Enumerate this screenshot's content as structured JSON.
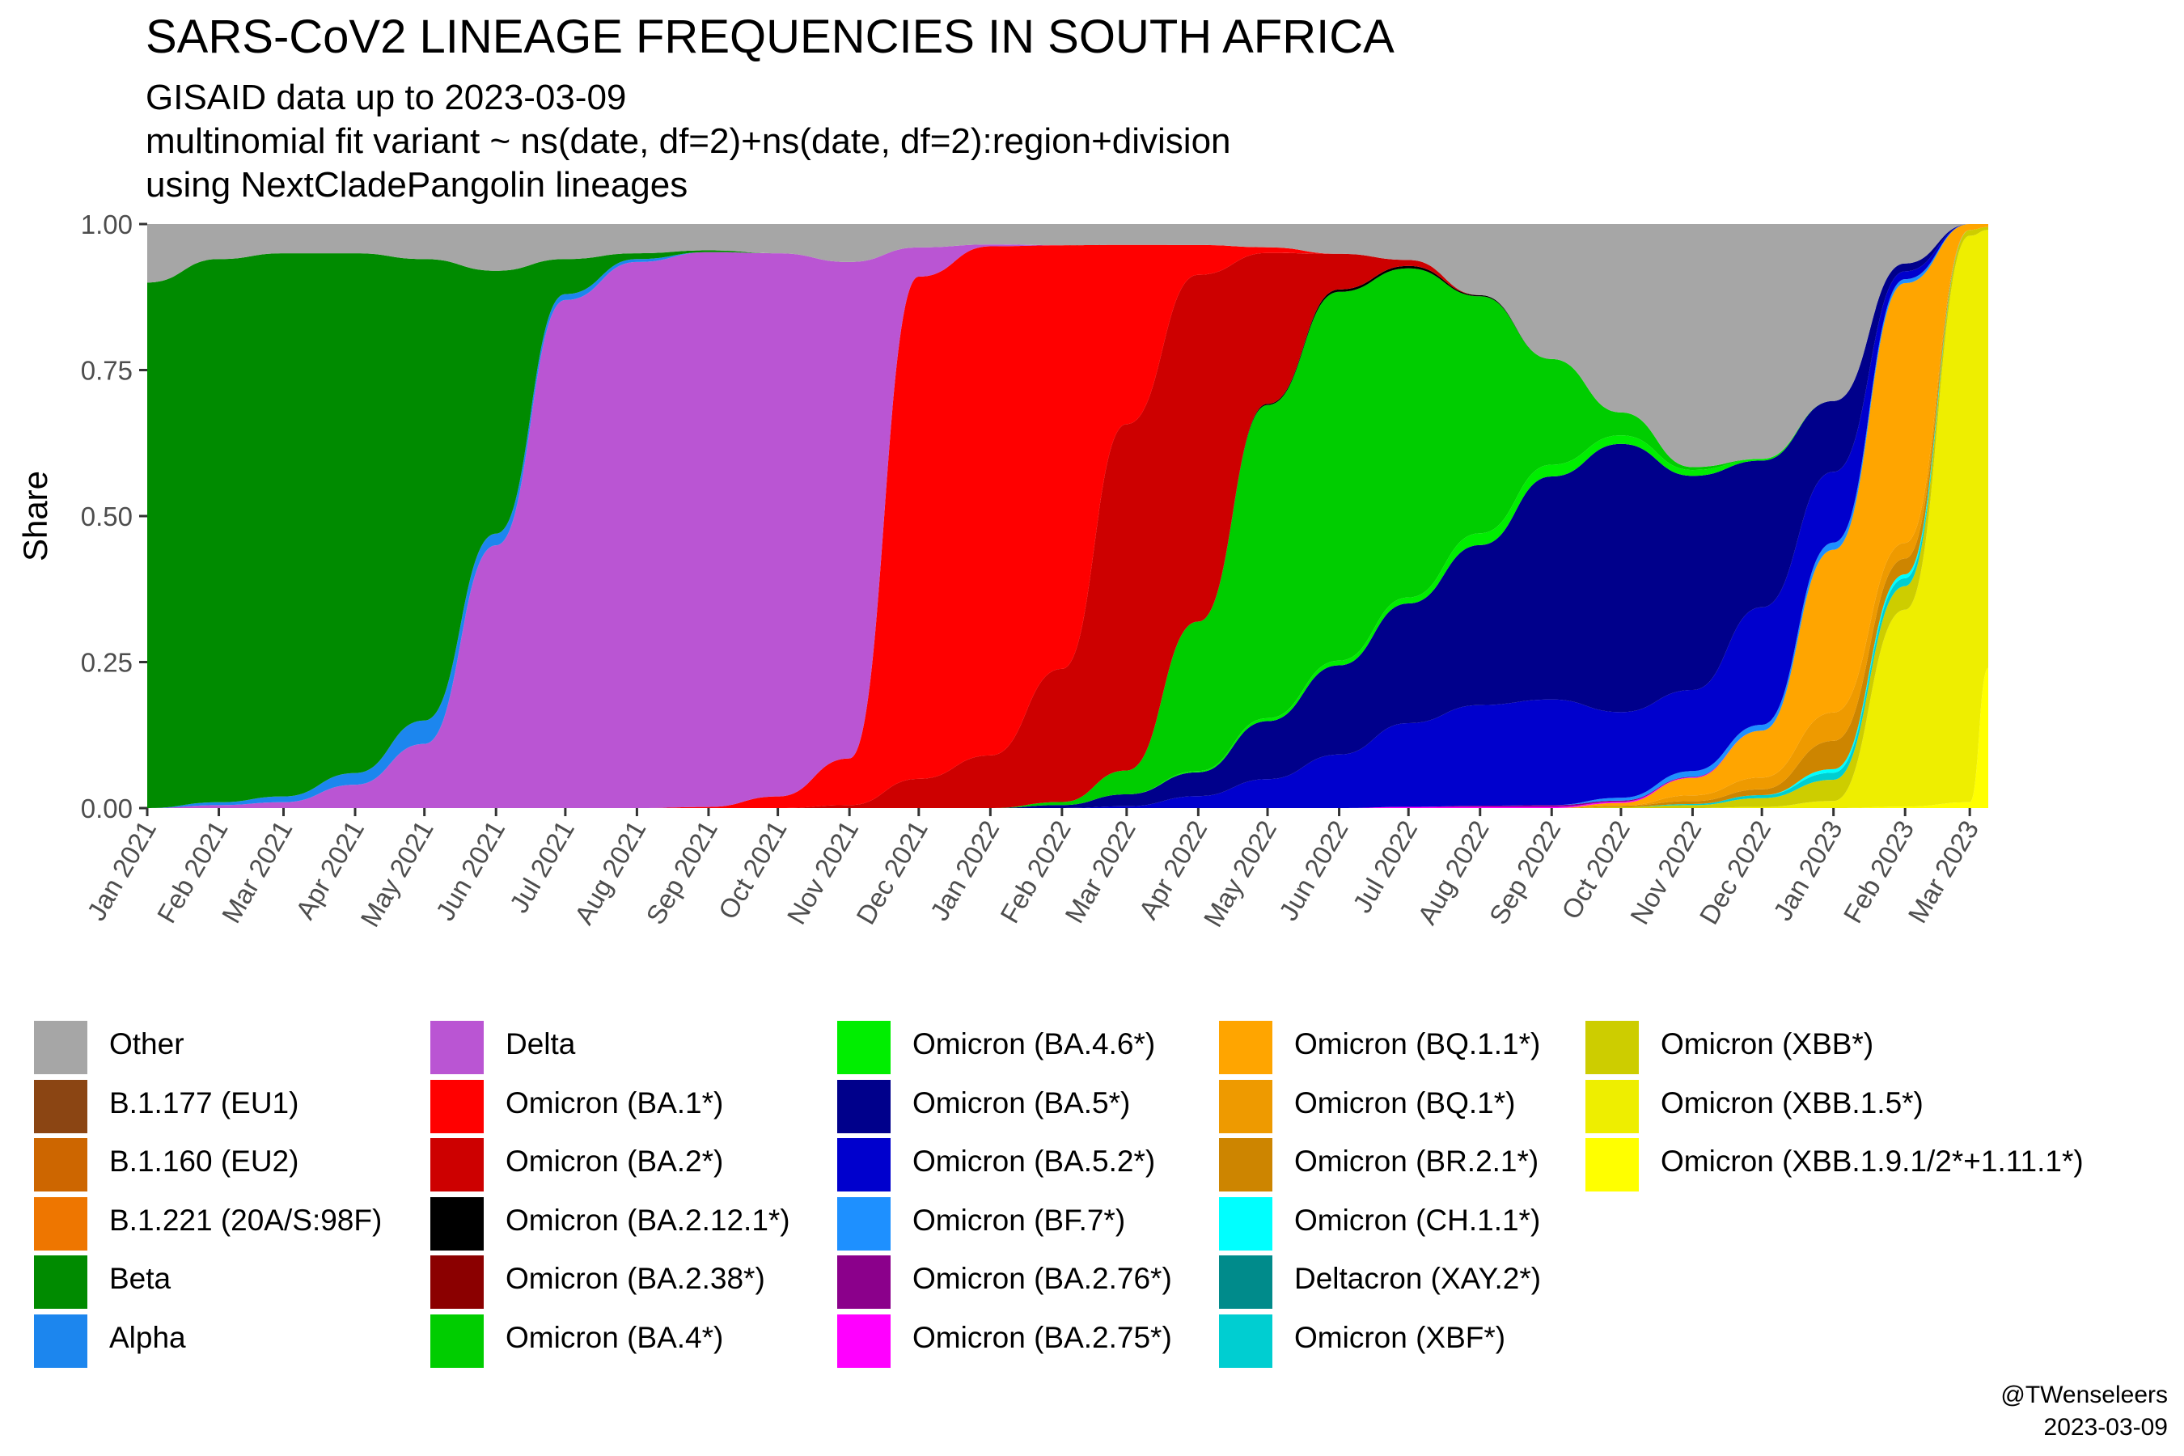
{
  "chart_data": {
    "type": "area",
    "stacked": true,
    "title": "SARS-CoV2 LINEAGE FREQUENCIES IN SOUTH AFRICA",
    "subtitle_lines": [
      "GISAID data up to 2023-03-09",
      "multinomial fit variant ~ ns(date, df=2)+ns(date, df=2):region+division",
      "using NextCladePangolin lineages"
    ],
    "ylabel": "Share",
    "xlabel": "",
    "ylim": [
      0,
      1
    ],
    "y_ticks": [
      "0.00",
      "0.25",
      "0.50",
      "0.75",
      "1.00"
    ],
    "x_ticks": [
      "Jan 2021",
      "Feb 2021",
      "Mar 2021",
      "Apr 2021",
      "May 2021",
      "Jun 2021",
      "Jul 2021",
      "Aug 2021",
      "Sep 2021",
      "Oct 2021",
      "Nov 2021",
      "Dec 2021",
      "Jan 2022",
      "Feb 2022",
      "Mar 2022",
      "Apr 2022",
      "May 2022",
      "Jun 2022",
      "Jul 2022",
      "Aug 2022",
      "Sep 2022",
      "Oct 2022",
      "Nov 2022",
      "Dec 2022",
      "Jan 2023",
      "Feb 2023",
      "Mar 2023"
    ],
    "x_dates": [
      "2021-01-01",
      "2021-02-01",
      "2021-03-01",
      "2021-04-01",
      "2021-05-01",
      "2021-06-01",
      "2021-07-01",
      "2021-08-01",
      "2021-09-01",
      "2021-10-01",
      "2021-11-01",
      "2021-12-01",
      "2022-01-01",
      "2022-02-01",
      "2022-03-01",
      "2022-04-01",
      "2022-05-01",
      "2022-06-01",
      "2022-07-01",
      "2022-08-01",
      "2022-09-01",
      "2022-10-01",
      "2022-11-01",
      "2022-12-01",
      "2023-01-01",
      "2023-02-01",
      "2023-03-01",
      "2023-03-09"
    ],
    "legend_position": "bottom",
    "grid": false,
    "series": [
      {
        "name": "Other",
        "color": "#A6A6A6",
        "values": [
          0.1,
          0.06,
          0.05,
          0.05,
          0.06,
          0.08,
          0.06,
          0.05,
          0.045,
          0.05,
          0.065,
          0.04,
          0.035,
          0.035,
          0.035,
          0.035,
          0.04,
          0.05,
          0.06,
          0.12,
          0.23,
          0.33,
          0.42,
          0.4,
          0.25,
          0.05,
          0.0,
          0.0
        ]
      },
      {
        "name": "B.1.177 (EU1)",
        "color": "#8B4513",
        "values": [
          0,
          0,
          0,
          0,
          0,
          0,
          0,
          0,
          0,
          0,
          0,
          0,
          0,
          0,
          0,
          0,
          0,
          0,
          0,
          0,
          0,
          0,
          0,
          0,
          0,
          0,
          0,
          0
        ]
      },
      {
        "name": "B.1.160 (EU2)",
        "color": "#CD6600",
        "values": [
          0,
          0,
          0,
          0,
          0,
          0,
          0,
          0,
          0,
          0,
          0,
          0,
          0,
          0,
          0,
          0,
          0,
          0,
          0,
          0,
          0,
          0,
          0,
          0,
          0,
          0,
          0,
          0
        ]
      },
      {
        "name": "B.1.221 (20A/S:98F)",
        "color": "#EE7600",
        "values": [
          0,
          0,
          0,
          0,
          0,
          0,
          0,
          0,
          0,
          0,
          0,
          0,
          0,
          0,
          0,
          0,
          0,
          0,
          0,
          0,
          0,
          0,
          0,
          0,
          0,
          0,
          0,
          0
        ]
      },
      {
        "name": "Beta",
        "color": "#008B00",
        "values": [
          0.9,
          0.93,
          0.93,
          0.89,
          0.79,
          0.45,
          0.06,
          0.01,
          0.003,
          0,
          0,
          0,
          0,
          0,
          0,
          0,
          0,
          0,
          0,
          0,
          0,
          0,
          0,
          0,
          0,
          0,
          0,
          0
        ]
      },
      {
        "name": "Alpha",
        "color": "#1C86EE",
        "values": [
          0,
          0.005,
          0.01,
          0.02,
          0.04,
          0.02,
          0.01,
          0.005,
          0,
          0,
          0,
          0,
          0,
          0,
          0,
          0,
          0,
          0,
          0,
          0,
          0,
          0,
          0,
          0,
          0,
          0,
          0,
          0
        ]
      },
      {
        "name": "Delta",
        "color": "#BA55D3",
        "values": [
          0,
          0.005,
          0.01,
          0.04,
          0.11,
          0.45,
          0.87,
          0.935,
          0.95,
          0.93,
          0.85,
          0.05,
          0.003,
          0,
          0,
          0,
          0,
          0,
          0,
          0,
          0,
          0,
          0,
          0,
          0,
          0,
          0,
          0
        ]
      },
      {
        "name": "Omicron (BA.1*)",
        "color": "#FF0000",
        "values": [
          0,
          0,
          0,
          0,
          0,
          0,
          0,
          0,
          0.002,
          0.02,
          0.08,
          0.86,
          0.87,
          0.7,
          0.3,
          0.05,
          0.01,
          0,
          0,
          0,
          0,
          0,
          0,
          0,
          0,
          0,
          0,
          0
        ]
      },
      {
        "name": "Omicron (BA.2*)",
        "color": "#CD0000",
        "values": [
          0,
          0,
          0,
          0,
          0,
          0,
          0,
          0,
          0,
          0,
          0.005,
          0.05,
          0.09,
          0.22,
          0.58,
          0.58,
          0.26,
          0.06,
          0.01,
          0,
          0,
          0,
          0,
          0,
          0,
          0,
          0,
          0
        ]
      },
      {
        "name": "Omicron (BA.2.12.1*)",
        "color": "#000000",
        "values": [
          0,
          0,
          0,
          0,
          0,
          0,
          0,
          0,
          0,
          0,
          0,
          0,
          0,
          0,
          0,
          0,
          0.002,
          0.004,
          0.004,
          0.002,
          0,
          0,
          0,
          0,
          0,
          0,
          0,
          0
        ]
      },
      {
        "name": "Omicron (BA.2.38*)",
        "color": "#8B0000",
        "values": [
          0,
          0,
          0,
          0,
          0,
          0,
          0,
          0,
          0,
          0,
          0,
          0,
          0,
          0,
          0,
          0,
          0,
          0,
          0,
          0,
          0,
          0,
          0,
          0,
          0,
          0,
          0,
          0
        ]
      },
      {
        "name": "Omicron (BA.4*)",
        "color": "#00CD00",
        "values": [
          0,
          0,
          0,
          0,
          0,
          0,
          0,
          0,
          0,
          0,
          0,
          0,
          0,
          0.005,
          0.04,
          0.25,
          0.54,
          0.62,
          0.55,
          0.4,
          0.18,
          0.04,
          0.005,
          0,
          0,
          0,
          0,
          0
        ]
      },
      {
        "name": "Omicron (BA.4.6*)",
        "color": "#00EE00",
        "values": [
          0,
          0,
          0,
          0,
          0,
          0,
          0,
          0,
          0,
          0,
          0,
          0,
          0,
          0,
          0,
          0.002,
          0.005,
          0.008,
          0.01,
          0.02,
          0.02,
          0.015,
          0.01,
          0.003,
          0,
          0,
          0,
          0
        ]
      },
      {
        "name": "Omicron (BA.5*)",
        "color": "#00008B",
        "values": [
          0,
          0,
          0,
          0,
          0,
          0,
          0,
          0,
          0,
          0,
          0,
          0,
          0,
          0.005,
          0.02,
          0.04,
          0.1,
          0.15,
          0.2,
          0.27,
          0.38,
          0.47,
          0.37,
          0.25,
          0.1,
          0.01,
          0,
          0
        ]
      },
      {
        "name": "Omicron (BA.5.2*)",
        "color": "#0000CD",
        "values": [
          0,
          0,
          0,
          0,
          0,
          0,
          0,
          0,
          0,
          0,
          0,
          0,
          0,
          0,
          0.003,
          0.02,
          0.05,
          0.09,
          0.14,
          0.17,
          0.18,
          0.15,
          0.14,
          0.2,
          0.1,
          0.01,
          0,
          0
        ]
      },
      {
        "name": "Omicron (BF.7*)",
        "color": "#1E90FF",
        "values": [
          0,
          0,
          0,
          0,
          0,
          0,
          0,
          0,
          0,
          0,
          0,
          0,
          0,
          0,
          0,
          0,
          0,
          0,
          0,
          0,
          0,
          0.005,
          0.01,
          0.01,
          0.01,
          0.005,
          0,
          0
        ]
      },
      {
        "name": "Omicron (BA.2.76*)",
        "color": "#8B008B",
        "values": [
          0,
          0,
          0,
          0,
          0,
          0,
          0,
          0,
          0,
          0,
          0,
          0,
          0,
          0,
          0,
          0,
          0,
          0,
          0,
          0.002,
          0.003,
          0.002,
          0.001,
          0,
          0,
          0,
          0,
          0
        ]
      },
      {
        "name": "Omicron (BA.2.75*)",
        "color": "#FF00FF",
        "values": [
          0,
          0,
          0,
          0,
          0,
          0,
          0,
          0,
          0,
          0,
          0,
          0,
          0,
          0,
          0,
          0,
          0,
          0,
          0.002,
          0.002,
          0.002,
          0.002,
          0.001,
          0,
          0,
          0,
          0,
          0
        ]
      },
      {
        "name": "Omicron (BQ.1.1*)",
        "color": "#FFA500",
        "values": [
          0,
          0,
          0,
          0,
          0,
          0,
          0,
          0,
          0,
          0,
          0,
          0,
          0,
          0,
          0,
          0,
          0,
          0,
          0,
          0,
          0,
          0.005,
          0.03,
          0.08,
          0.23,
          0.33,
          0.01,
          0.005
        ]
      },
      {
        "name": "Omicron (BQ.1*)",
        "color": "#EE9A00",
        "values": [
          0,
          0,
          0,
          0,
          0,
          0,
          0,
          0,
          0,
          0,
          0,
          0,
          0,
          0,
          0,
          0,
          0,
          0,
          0,
          0,
          0,
          0,
          0.01,
          0.02,
          0.04,
          0.02,
          0,
          0
        ]
      },
      {
        "name": "Omicron (BR.2.1*)",
        "color": "#CD8500",
        "values": [
          0,
          0,
          0,
          0,
          0,
          0,
          0,
          0,
          0,
          0,
          0,
          0,
          0,
          0,
          0,
          0,
          0,
          0,
          0,
          0,
          0,
          0.002,
          0.005,
          0.01,
          0.04,
          0.02,
          0,
          0
        ]
      },
      {
        "name": "Omicron (CH.1.1*)",
        "color": "#00FFFF",
        "values": [
          0,
          0,
          0,
          0,
          0,
          0,
          0,
          0,
          0,
          0,
          0,
          0,
          0,
          0,
          0,
          0,
          0,
          0,
          0,
          0,
          0,
          0,
          0,
          0,
          0.005,
          0.005,
          0,
          0
        ]
      },
      {
        "name": "Deltacron (XAY.2*)",
        "color": "#008B8B",
        "values": [
          0,
          0,
          0,
          0,
          0,
          0,
          0,
          0,
          0,
          0,
          0,
          0,
          0,
          0,
          0,
          0,
          0,
          0,
          0,
          0,
          0,
          0,
          0,
          0,
          0,
          0,
          0,
          0
        ]
      },
      {
        "name": "Omicron (XBF*)",
        "color": "#00CED1",
        "values": [
          0,
          0,
          0,
          0,
          0,
          0,
          0,
          0,
          0,
          0,
          0,
          0,
          0,
          0,
          0,
          0,
          0,
          0,
          0,
          0,
          0,
          0,
          0.002,
          0.005,
          0.01,
          0.01,
          0,
          0
        ]
      },
      {
        "name": "Omicron (XBB*)",
        "color": "#CDCD00",
        "values": [
          0,
          0,
          0,
          0,
          0,
          0,
          0,
          0,
          0,
          0,
          0,
          0,
          0,
          0,
          0,
          0,
          0,
          0,
          0,
          0,
          0,
          0.002,
          0.005,
          0.015,
          0.03,
          0.03,
          0.01,
          0.005
        ]
      },
      {
        "name": "Omicron (XBB.1.5*)",
        "color": "#EEEE00",
        "values": [
          0,
          0,
          0,
          0,
          0,
          0,
          0,
          0,
          0,
          0,
          0,
          0,
          0,
          0,
          0,
          0,
          0,
          0,
          0,
          0,
          0,
          0,
          0,
          0.002,
          0.01,
          0.25,
          0.97,
          0.75
        ]
      },
      {
        "name": "Omicron (XBB.1.9.1/2*+1.11.1*)",
        "color": "#FFFF00",
        "values": [
          0,
          0,
          0,
          0,
          0,
          0,
          0,
          0,
          0,
          0,
          0,
          0,
          0,
          0,
          0,
          0,
          0,
          0,
          0,
          0,
          0,
          0,
          0,
          0,
          0,
          0.002,
          0.01,
          0.24
        ]
      }
    ]
  },
  "credit": {
    "handle": "@TWenseleers",
    "date": "2023-03-09"
  }
}
